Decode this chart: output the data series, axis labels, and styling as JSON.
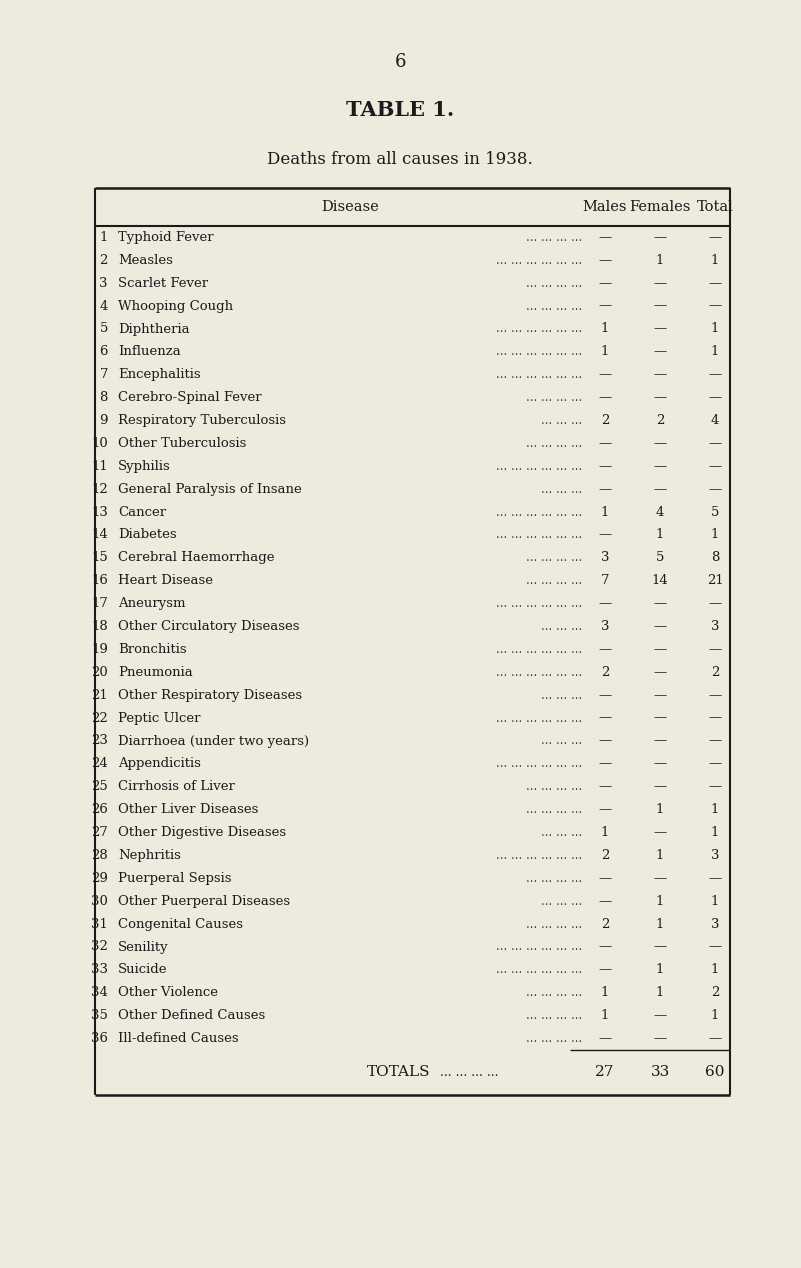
{
  "page_number": "6",
  "table_title": "TABLE 1.",
  "subtitle": "Deaths from all causes in 1938.",
  "bg_color": "#eeeade",
  "text_color": "#1a1a1a",
  "font_family": "serif",
  "col_headers": [
    "Disease",
    "Males",
    "Females",
    "Total"
  ],
  "rows": [
    {
      "num": "1",
      "disease": "Typhoid Fever",
      "males": "—",
      "females": "—",
      "total": "—"
    },
    {
      "num": "2",
      "disease": "Measles",
      "males": "—",
      "females": "1",
      "total": "1"
    },
    {
      "num": "3",
      "disease": "Scarlet Fever",
      "males": "—",
      "females": "—",
      "total": "—"
    },
    {
      "num": "4",
      "disease": "Whooping Cough",
      "males": "—",
      "females": "—",
      "total": "—"
    },
    {
      "num": "5",
      "disease": "Diphtheria",
      "males": "1",
      "females": "—",
      "total": "1"
    },
    {
      "num": "6",
      "disease": "Influenza",
      "males": "1",
      "females": "—",
      "total": "1"
    },
    {
      "num": "7",
      "disease": "Encephalitis",
      "males": "—",
      "females": "—",
      "total": "—"
    },
    {
      "num": "8",
      "disease": "Cerebro-Spinal Fever",
      "males": "—",
      "females": "—",
      "total": "—"
    },
    {
      "num": "9",
      "disease": "Respiratory Tuberculosis",
      "males": "2",
      "females": "2",
      "total": "4"
    },
    {
      "num": "10",
      "disease": "Other Tuberculosis",
      "males": "—",
      "females": "—",
      "total": "—"
    },
    {
      "num": "11",
      "disease": "Syphilis",
      "males": "—",
      "females": "—",
      "total": "—"
    },
    {
      "num": "12",
      "disease": "General Paralysis of Insane",
      "males": "—",
      "females": "—",
      "total": "—"
    },
    {
      "num": "13",
      "disease": "Cancer",
      "males": "1",
      "females": "4",
      "total": "5"
    },
    {
      "num": "14",
      "disease": "Diabetes",
      "males": "—",
      "females": "1",
      "total": "1"
    },
    {
      "num": "15",
      "disease": "Cerebral Haemorrhage",
      "males": "3",
      "females": "5",
      "total": "8"
    },
    {
      "num": "16",
      "disease": "Heart Disease",
      "males": "7",
      "females": "14",
      "total": "21"
    },
    {
      "num": "17",
      "disease": "Aneurysm",
      "males": "—",
      "females": "—",
      "total": "—"
    },
    {
      "num": "18",
      "disease": "Other Circulatory Diseases",
      "males": "3",
      "females": "—",
      "total": "3"
    },
    {
      "num": "19",
      "disease": "Bronchitis",
      "males": "—",
      "females": "—",
      "total": "—"
    },
    {
      "num": "20",
      "disease": "Pneumonia",
      "males": "2",
      "females": "—",
      "total": "2"
    },
    {
      "num": "21",
      "disease": "Other Respiratory Diseases",
      "males": "—",
      "females": "—",
      "total": "—"
    },
    {
      "num": "22",
      "disease": "Peptic Ulcer",
      "males": "—",
      "females": "—",
      "total": "—"
    },
    {
      "num": "23",
      "disease": "Diarrhoea (under two years)",
      "males": "—",
      "females": "—",
      "total": "—"
    },
    {
      "num": "24",
      "disease": "Appendicitis",
      "males": "—",
      "females": "—",
      "total": "—"
    },
    {
      "num": "25",
      "disease": "Cirrhosis of Liver",
      "males": "—",
      "females": "—",
      "total": "—"
    },
    {
      "num": "26",
      "disease": "Other Liver Diseases",
      "males": "—",
      "females": "1",
      "total": "1"
    },
    {
      "num": "27",
      "disease": "Other Digestive Diseases",
      "males": "1",
      "females": "—",
      "total": "1"
    },
    {
      "num": "28",
      "disease": "Nephritis",
      "males": "2",
      "females": "1",
      "total": "3"
    },
    {
      "num": "29",
      "disease": "Puerperal Sepsis",
      "males": "—",
      "females": "—",
      "total": "—"
    },
    {
      "num": "30",
      "disease": "Other Puerperal Diseases",
      "males": "—",
      "females": "1",
      "total": "1"
    },
    {
      "num": "31",
      "disease": "Congenital Causes",
      "males": "2",
      "females": "1",
      "total": "3"
    },
    {
      "num": "32",
      "disease": "Senility",
      "males": "—",
      "females": "—",
      "total": "—"
    },
    {
      "num": "33",
      "disease": "Suicide",
      "males": "—",
      "females": "1",
      "total": "1"
    },
    {
      "num": "34",
      "disease": "Other Violence",
      "males": "1",
      "females": "1",
      "total": "2"
    },
    {
      "num": "35",
      "disease": "Other Defined Causes",
      "males": "1",
      "females": "—",
      "total": "1"
    },
    {
      "num": "36",
      "disease": "Ill-defined Causes",
      "males": "—",
      "females": "—",
      "total": "—"
    }
  ],
  "totals_label": "TOTALS",
  "totals_dots": "... ... ... ...",
  "totals_males": "27",
  "totals_females": "33",
  "totals_total": "60",
  "dots_short": "... ... ... ... ... ...",
  "dots_long": "... ... ... ... ... ... ... ..."
}
